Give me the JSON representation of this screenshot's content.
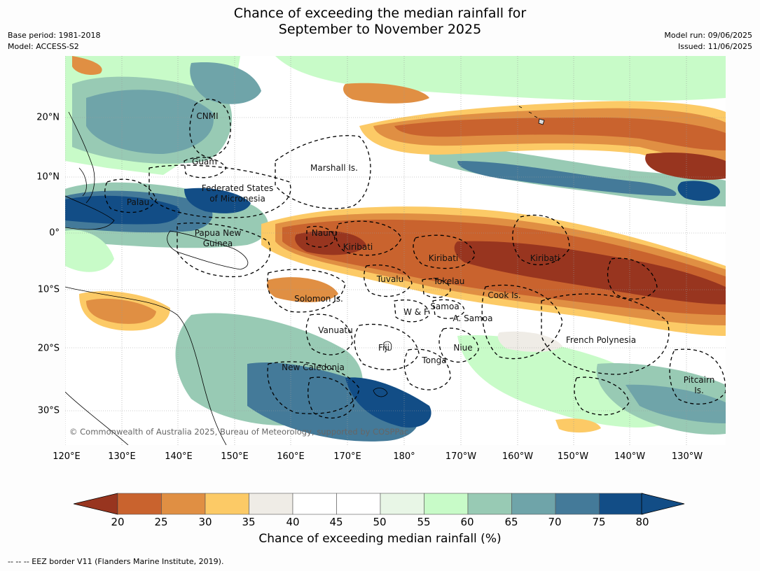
{
  "header": {
    "title_line1": "Chance of exceeding the median rainfall for",
    "title_line2": "September to November 2025",
    "base_period": "Base period: 1981-2018",
    "model": "Model: ACCESS-S2",
    "model_run": "Model run: 09/06/2025",
    "issued": "Issued: 11/06/2025"
  },
  "map": {
    "lon_labels": [
      "120°E",
      "130°E",
      "140°E",
      "150°E",
      "160°E",
      "170°E",
      "180°",
      "170°W",
      "160°W",
      "150°W",
      "140°W",
      "130°W"
    ],
    "lat_labels": [
      "20°N",
      "10°N",
      "0°",
      "10°S",
      "20°S",
      "30°S"
    ],
    "regions": [
      {
        "label": "CNMI"
      },
      {
        "label": "Guam"
      },
      {
        "label": "Marshall Is."
      },
      {
        "label": "Federated States"
      },
      {
        "label": "of Micronesia"
      },
      {
        "label": "Palau"
      },
      {
        "label": "Papua New"
      },
      {
        "label": "Guinea"
      },
      {
        "label": "Nauru"
      },
      {
        "label": "Kiribati"
      },
      {
        "label": "Kiribati"
      },
      {
        "label": "Kiribati"
      },
      {
        "label": "Tuvalu"
      },
      {
        "label": "Tokelau"
      },
      {
        "label": "Cook Is."
      },
      {
        "label": "Solomon Is."
      },
      {
        "label": "Samoa"
      },
      {
        "label": "W & F"
      },
      {
        "label": "A. Samoa"
      },
      {
        "label": "Vanuatu"
      },
      {
        "label": "Fiji"
      },
      {
        "label": "Niue"
      },
      {
        "label": "Tonga"
      },
      {
        "label": "French Polynesia"
      },
      {
        "label": "New Caledonia"
      },
      {
        "label": "Pitcairn"
      },
      {
        "label": "Is."
      }
    ],
    "copyright": "© Commonwealth of Australia 2025, Bureau of Meteorology, supported by COSPPac"
  },
  "colorbar": {
    "ticks": [
      "20",
      "25",
      "30",
      "35",
      "40",
      "45",
      "50",
      "55",
      "60",
      "65",
      "70",
      "75",
      "80"
    ],
    "colors": [
      "#b44b25",
      "#c9632e",
      "#e08f43",
      "#fcca66",
      "#efece6",
      "#ffffff",
      "#ffffff",
      "#e8f6e6",
      "#c8fbc8",
      "#98cab4",
      "#6fa4a9",
      "#447a99",
      "#124d86"
    ],
    "low_extend_color": "#98351f",
    "high_extend_color": "#124d86",
    "title": "Chance of exceeding median rainfall (%)"
  },
  "footer": {
    "eez_note": "--  --  -- EEZ border V11 (Flanders Marine Institute, 2019)."
  }
}
